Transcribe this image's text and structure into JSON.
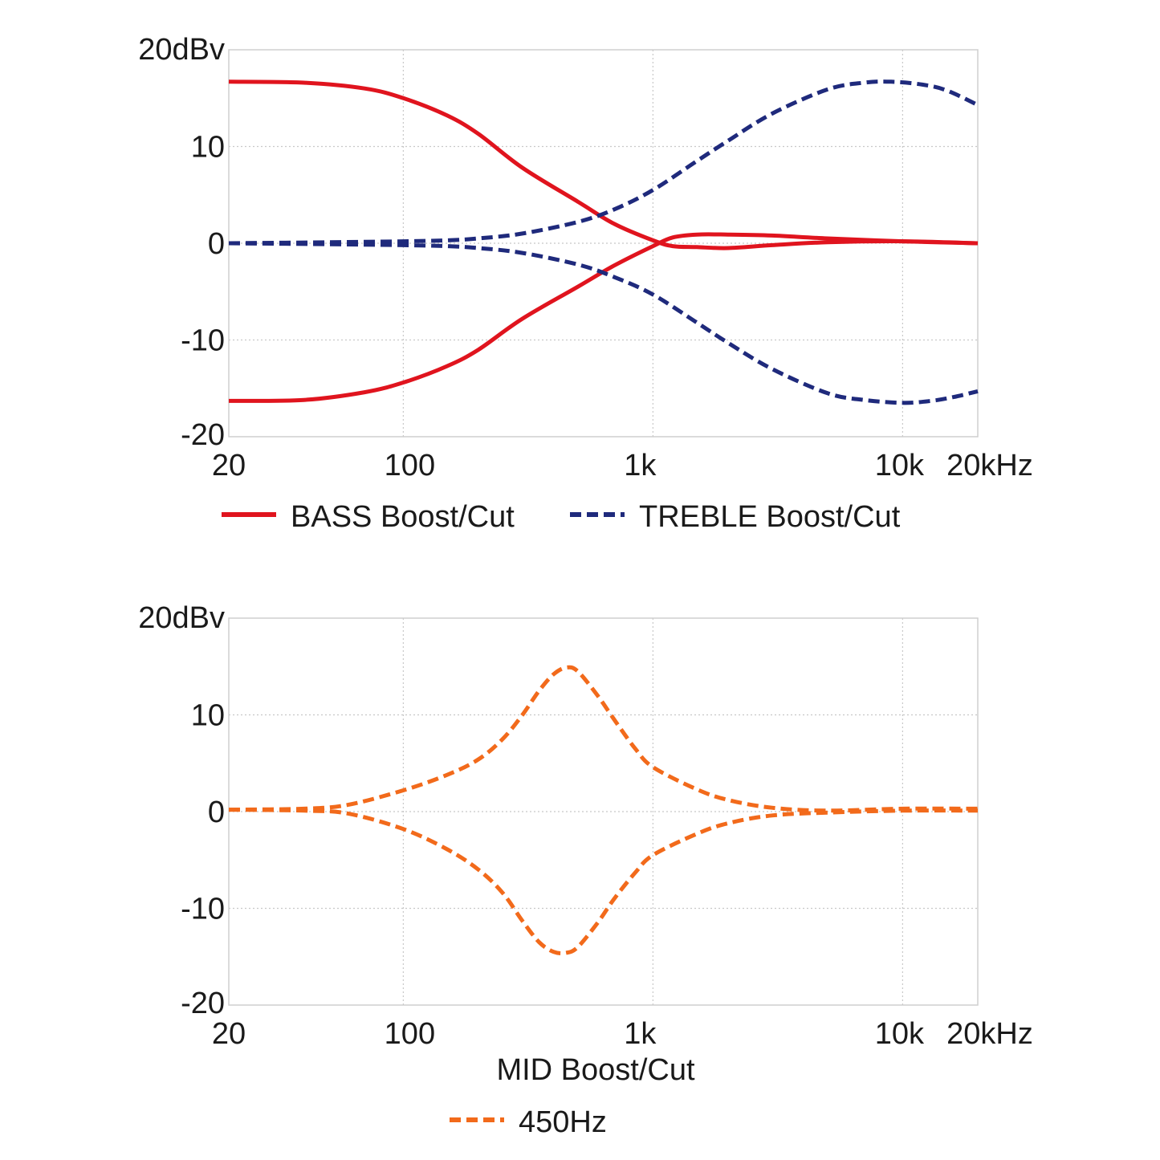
{
  "chart_data": [
    {
      "type": "line",
      "xscale": "log",
      "xlim": [
        20,
        20000
      ],
      "ylim": [
        -20,
        20
      ],
      "y_ticks": [
        {
          "value": 20,
          "label": "20dBv"
        },
        {
          "value": 10,
          "label": "10"
        },
        {
          "value": 0,
          "label": "0"
        },
        {
          "value": -10,
          "label": "-10"
        },
        {
          "value": -20,
          "label": "-20"
        }
      ],
      "x_ticks": [
        {
          "value": 20,
          "label": "20"
        },
        {
          "value": 100,
          "label": "100"
        },
        {
          "value": 1000,
          "label": "1k"
        },
        {
          "value": 10000,
          "label": "10k"
        },
        {
          "value": 20000,
          "label": "20kHz"
        }
      ],
      "grid": true,
      "legend": [
        {
          "label": "BASS Boost/Cut",
          "style": "solid",
          "color": "#e0141e"
        },
        {
          "label": "TREBLE Boost/Cut",
          "style": "dashed",
          "color": "#1f2a7c"
        }
      ],
      "series": [
        {
          "name": "BASS Boost",
          "style": "solid",
          "color": "#e0141e",
          "x": [
            20,
            40,
            70,
            100,
            150,
            200,
            300,
            500,
            700,
            1000,
            1200,
            1500,
            2000,
            3000,
            5000,
            10000,
            20000
          ],
          "y": [
            16.7,
            16.6,
            16.0,
            15.0,
            13.2,
            11.3,
            7.8,
            4.3,
            2.0,
            0.3,
            -0.3,
            -0.4,
            -0.5,
            -0.2,
            0.1,
            0.2,
            0.0
          ]
        },
        {
          "name": "BASS Cut",
          "style": "solid",
          "color": "#e0141e",
          "x": [
            20,
            40,
            70,
            100,
            150,
            200,
            300,
            500,
            700,
            1000,
            1200,
            1500,
            2000,
            3000,
            5000,
            10000,
            20000
          ],
          "y": [
            -16.3,
            -16.2,
            -15.4,
            -14.4,
            -12.7,
            -11.0,
            -7.8,
            -4.5,
            -2.3,
            -0.3,
            0.6,
            0.9,
            0.9,
            0.8,
            0.5,
            0.2,
            0.0
          ]
        },
        {
          "name": "TREBLE Boost",
          "style": "dashed",
          "color": "#1f2a7c",
          "x": [
            20,
            50,
            100,
            150,
            200,
            300,
            500,
            700,
            1000,
            1500,
            2000,
            3000,
            5000,
            7000,
            9000,
            12000,
            15000,
            20000
          ],
          "y": [
            0.0,
            0.1,
            0.2,
            0.3,
            0.5,
            1.0,
            2.2,
            3.5,
            5.5,
            8.5,
            10.6,
            13.4,
            15.9,
            16.6,
            16.7,
            16.4,
            15.8,
            14.3
          ]
        },
        {
          "name": "TREBLE Cut",
          "style": "dashed",
          "color": "#1f2a7c",
          "x": [
            20,
            50,
            100,
            150,
            200,
            300,
            500,
            700,
            1000,
            1500,
            2000,
            3000,
            5000,
            7000,
            10000,
            13000,
            16000,
            20000
          ],
          "y": [
            0.0,
            -0.1,
            -0.2,
            -0.3,
            -0.5,
            -1.0,
            -2.2,
            -3.5,
            -5.3,
            -8.2,
            -10.3,
            -13.0,
            -15.5,
            -16.2,
            -16.5,
            -16.3,
            -15.9,
            -15.3
          ]
        }
      ]
    },
    {
      "type": "line",
      "xscale": "log",
      "xlim": [
        20,
        20000
      ],
      "ylim": [
        -20,
        20
      ],
      "y_ticks": [
        {
          "value": 20,
          "label": "20dBv"
        },
        {
          "value": 10,
          "label": "10"
        },
        {
          "value": 0,
          "label": "0"
        },
        {
          "value": -10,
          "label": "-10"
        },
        {
          "value": -20,
          "label": "-20"
        }
      ],
      "x_ticks": [
        {
          "value": 20,
          "label": "20"
        },
        {
          "value": 100,
          "label": "100"
        },
        {
          "value": 1000,
          "label": "1k"
        },
        {
          "value": 10000,
          "label": "10k"
        },
        {
          "value": 20000,
          "label": "20kHz"
        }
      ],
      "grid": true,
      "title_below": "MID Boost/Cut",
      "legend": [
        {
          "label": "450Hz",
          "style": "dashed",
          "color": "#f26a1b"
        }
      ],
      "series": [
        {
          "name": "MID Boost",
          "style": "dashed",
          "color": "#f26a1b",
          "x": [
            20,
            40,
            60,
            100,
            150,
            200,
            250,
            300,
            350,
            400,
            450,
            500,
            600,
            700,
            850,
            1000,
            1500,
            2000,
            3000,
            5000,
            10000,
            20000
          ],
          "y": [
            0.2,
            0.3,
            0.7,
            2.2,
            3.8,
            5.4,
            7.5,
            10.0,
            12.5,
            14.2,
            14.9,
            14.5,
            12.0,
            9.5,
            6.5,
            4.6,
            2.3,
            1.2,
            0.4,
            0.1,
            0.3,
            0.3
          ]
        },
        {
          "name": "MID Cut",
          "style": "dashed",
          "color": "#f26a1b",
          "x": [
            20,
            40,
            60,
            100,
            150,
            200,
            250,
            300,
            350,
            400,
            450,
            500,
            600,
            700,
            850,
            1000,
            1500,
            2000,
            3000,
            5000,
            10000,
            20000
          ],
          "y": [
            0.2,
            0.1,
            -0.2,
            -1.8,
            -3.9,
            -6.0,
            -8.4,
            -11.3,
            -13.5,
            -14.5,
            -14.6,
            -14.0,
            -11.5,
            -9.0,
            -6.3,
            -4.5,
            -2.3,
            -1.2,
            -0.4,
            -0.1,
            0.1,
            0.1
          ]
        }
      ]
    }
  ]
}
